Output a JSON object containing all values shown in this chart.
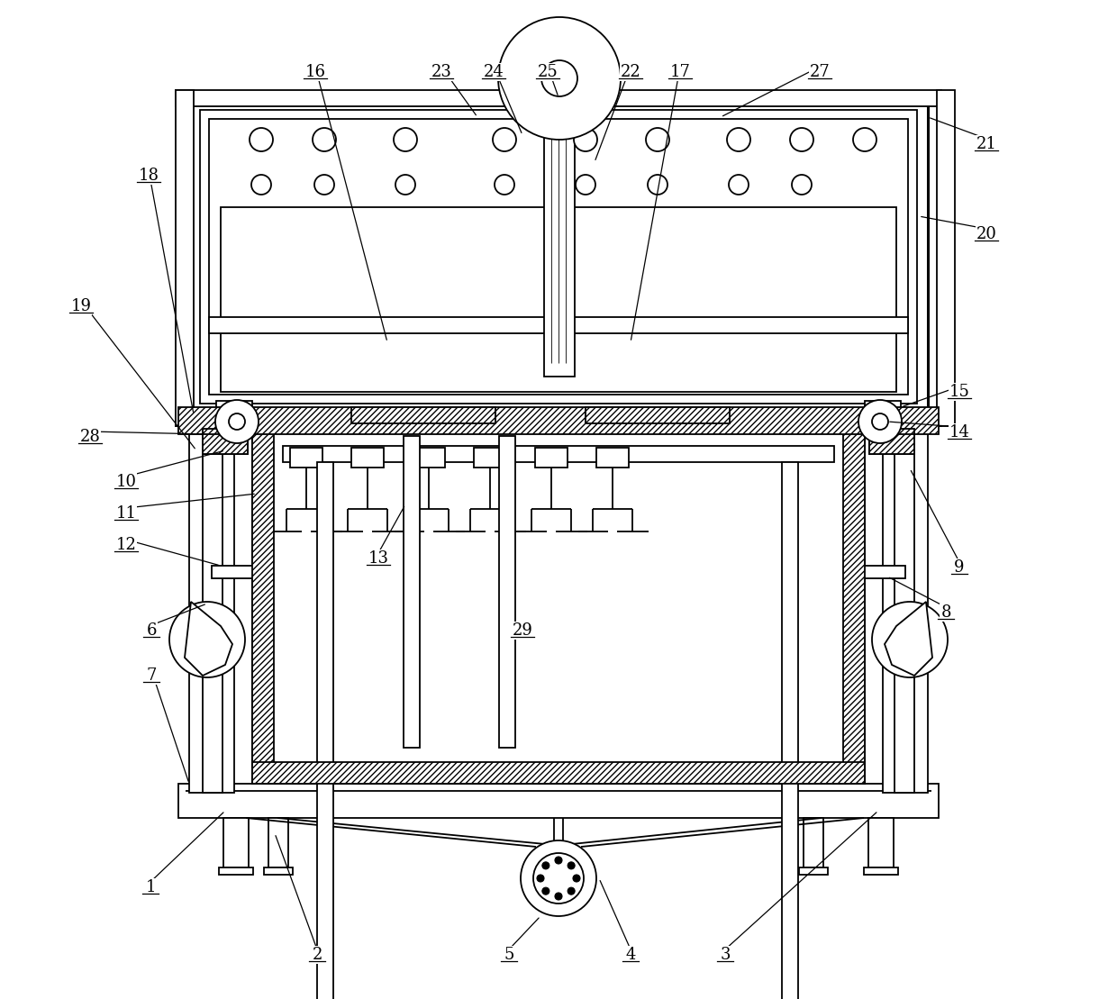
{
  "bg_color": "#ffffff",
  "line_color": "#000000",
  "lw": 1.3,
  "tlw": 2.2,
  "figsize": [
    12.4,
    11.09
  ],
  "dpi": 100
}
